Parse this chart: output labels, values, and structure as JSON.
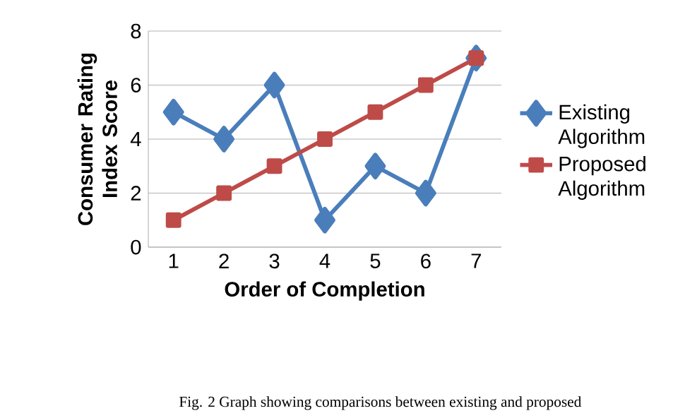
{
  "chart_data": {
    "type": "line",
    "xlabel": "Order of Completion",
    "ylabel": "Consumer Rating Index Score",
    "categories": [
      "1",
      "2",
      "3",
      "4",
      "5",
      "6",
      "7"
    ],
    "series": [
      {
        "name": "Existing Algorithm",
        "color": "#4a7ebb",
        "marker": "diamond",
        "values": [
          5,
          4,
          6,
          1,
          3,
          2,
          7
        ]
      },
      {
        "name": "Proposed Algorithm",
        "color": "#be4b48",
        "marker": "square",
        "values": [
          1,
          2,
          3,
          4,
          5,
          6,
          7
        ]
      }
    ],
    "ylim": [
      0,
      8
    ],
    "yticks": [
      0,
      2,
      4,
      6,
      8
    ],
    "grid": "y",
    "legend": "right",
    "annotations": [
      "Fig. 2 Graph showing comparisons between existing and proposed"
    ]
  }
}
